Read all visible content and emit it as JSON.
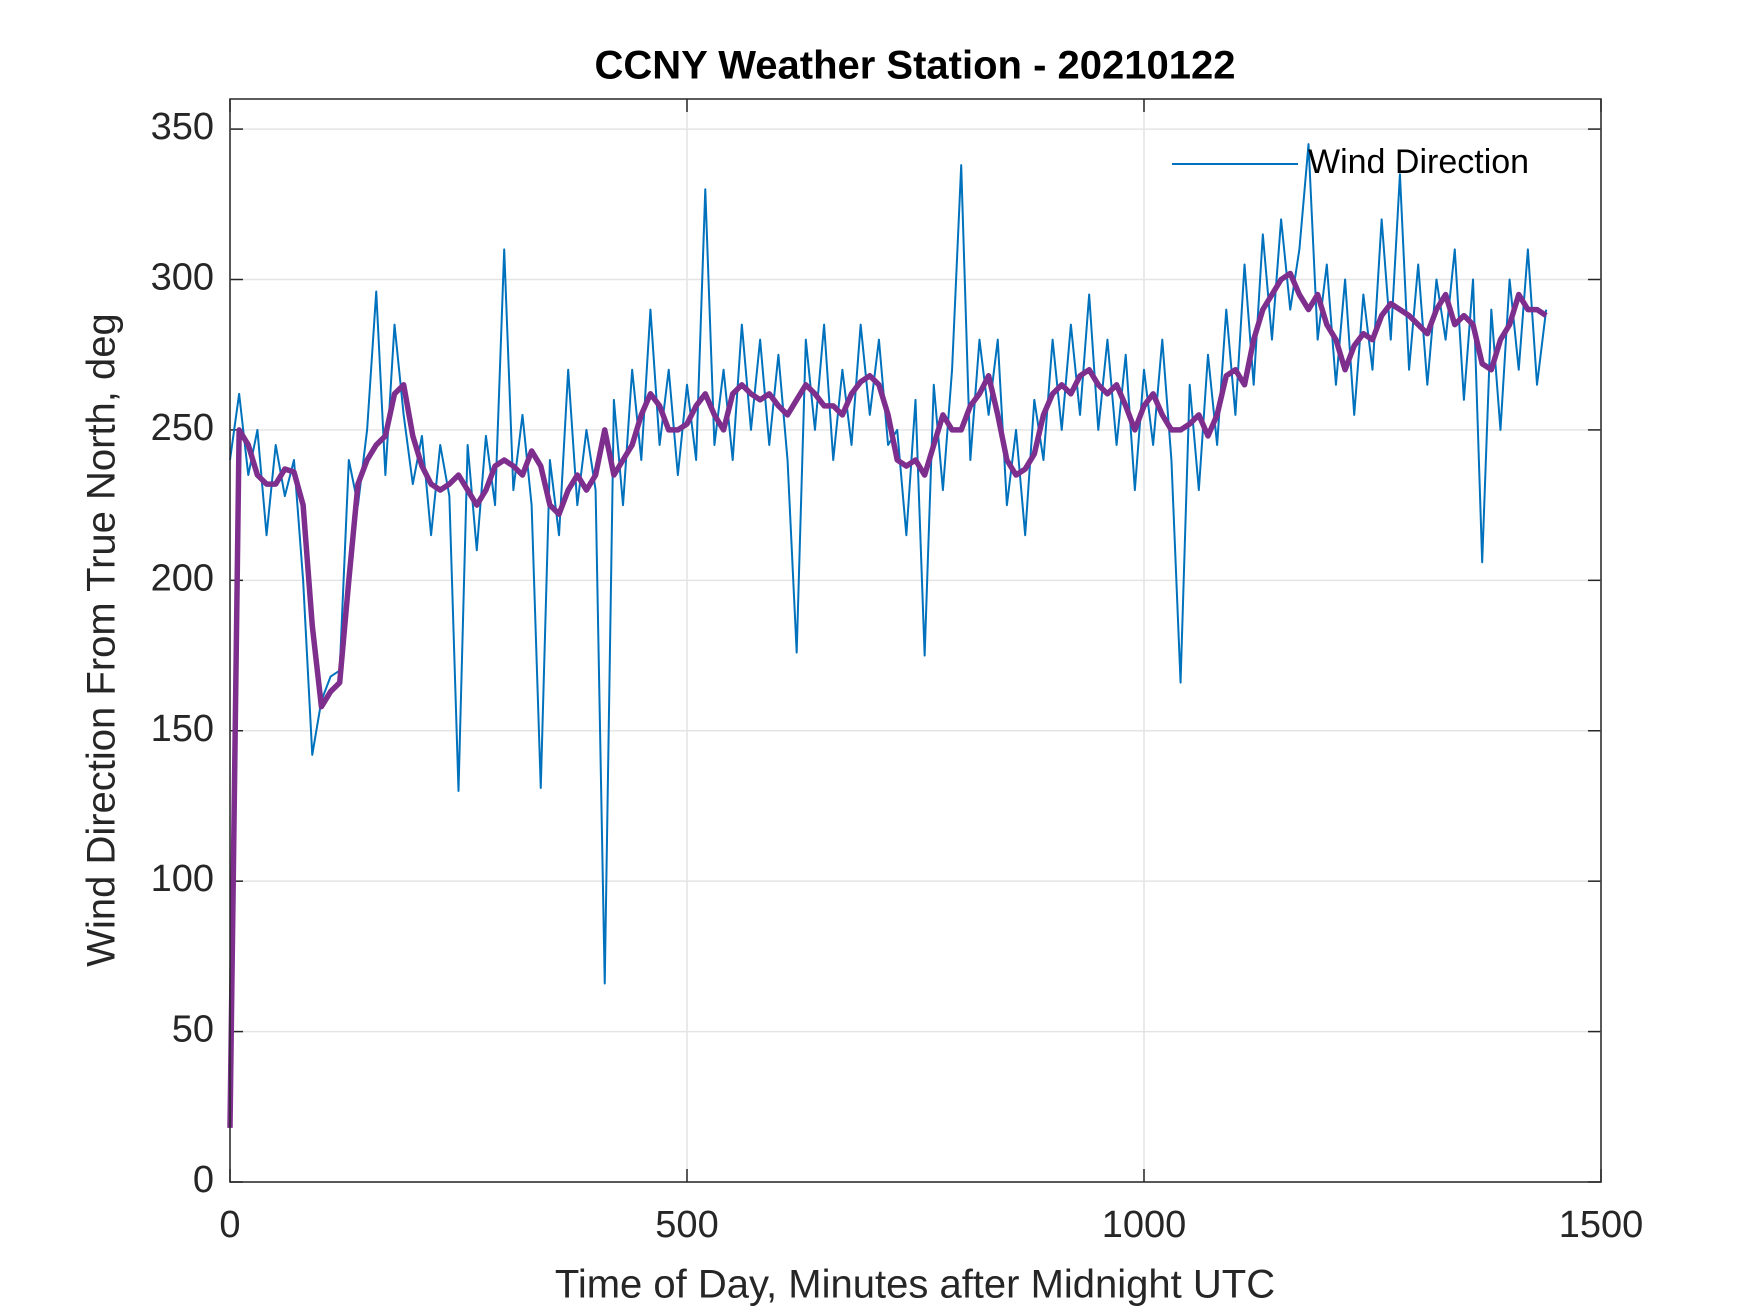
{
  "chart_data": {
    "type": "line",
    "title": "CCNY Weather Station - 20210122",
    "xlabel": "Time of Day, Minutes after Midnight UTC",
    "ylabel": "Wind Direction From True North, deg",
    "x": [
      0,
      10,
      20,
      30,
      40,
      50,
      60,
      70,
      80,
      90,
      100,
      110,
      120,
      130,
      140,
      150,
      160,
      170,
      180,
      190,
      200,
      210,
      220,
      230,
      240,
      250,
      260,
      270,
      280,
      290,
      300,
      310,
      320,
      330,
      340,
      350,
      360,
      370,
      380,
      390,
      400,
      410,
      420,
      430,
      440,
      450,
      460,
      470,
      480,
      490,
      500,
      510,
      520,
      530,
      540,
      550,
      560,
      570,
      580,
      590,
      600,
      610,
      620,
      630,
      640,
      650,
      660,
      670,
      680,
      690,
      700,
      710,
      720,
      730,
      740,
      750,
      760,
      770,
      780,
      790,
      800,
      810,
      820,
      830,
      840,
      850,
      860,
      870,
      880,
      890,
      900,
      910,
      920,
      930,
      940,
      950,
      960,
      970,
      980,
      990,
      1000,
      1010,
      1020,
      1030,
      1040,
      1050,
      1060,
      1070,
      1080,
      1090,
      1100,
      1110,
      1120,
      1130,
      1140,
      1150,
      1160,
      1170,
      1180,
      1190,
      1200,
      1210,
      1220,
      1230,
      1240,
      1250,
      1260,
      1270,
      1280,
      1290,
      1300,
      1310,
      1320,
      1330,
      1340,
      1350,
      1360,
      1370,
      1380,
      1390,
      1400,
      1410,
      1420,
      1430,
      1440
    ],
    "series": [
      {
        "name": "Wind Direction",
        "color": "#0072BD",
        "values": [
          240,
          262,
          235,
          250,
          215,
          245,
          228,
          240,
          200,
          142,
          160,
          168,
          170,
          240,
          225,
          250,
          296,
          235,
          285,
          255,
          232,
          248,
          215,
          245,
          228,
          130,
          245,
          210,
          248,
          225,
          310,
          230,
          255,
          225,
          131,
          240,
          215,
          270,
          225,
          250,
          230,
          66,
          260,
          225,
          270,
          240,
          290,
          245,
          270,
          235,
          265,
          240,
          330,
          245,
          270,
          240,
          285,
          250,
          280,
          245,
          275,
          240,
          176,
          280,
          250,
          285,
          240,
          270,
          245,
          285,
          255,
          280,
          245,
          250,
          215,
          260,
          175,
          265,
          230,
          270,
          338,
          240,
          280,
          255,
          280,
          225,
          250,
          215,
          260,
          240,
          280,
          250,
          285,
          255,
          295,
          250,
          280,
          245,
          275,
          230,
          270,
          245,
          280,
          240,
          166,
          265,
          230,
          275,
          245,
          290,
          255,
          305,
          265,
          315,
          280,
          320,
          290,
          310,
          345,
          280,
          305,
          265,
          300,
          255,
          295,
          270,
          320,
          280,
          335,
          270,
          305,
          265,
          300,
          280,
          310,
          260,
          300,
          206,
          290,
          250,
          300,
          270,
          310,
          265,
          290
        ]
      },
      {
        "color": "#7E2F8E",
        "values": [
          18,
          250,
          245,
          235,
          232,
          232,
          237,
          236,
          225,
          185,
          158,
          163,
          166,
          200,
          232,
          240,
          245,
          248,
          262,
          265,
          248,
          238,
          232,
          230,
          232,
          235,
          230,
          225,
          230,
          238,
          240,
          238,
          235,
          243,
          238,
          225,
          222,
          230,
          235,
          230,
          235,
          250,
          235,
          240,
          245,
          255,
          262,
          258,
          250,
          250,
          252,
          258,
          262,
          255,
          250,
          262,
          265,
          262,
          260,
          262,
          258,
          255,
          260,
          265,
          262,
          258,
          258,
          255,
          262,
          266,
          268,
          265,
          255,
          240,
          238,
          240,
          235,
          245,
          255,
          250,
          250,
          258,
          262,
          268,
          255,
          240,
          235,
          237,
          242,
          255,
          262,
          265,
          262,
          268,
          270,
          265,
          262,
          265,
          258,
          250,
          258,
          262,
          255,
          250,
          250,
          252,
          255,
          248,
          255,
          268,
          270,
          265,
          280,
          290,
          295,
          300,
          302,
          295,
          290,
          295,
          285,
          280,
          270,
          278,
          282,
          280,
          288,
          292,
          290,
          288,
          285,
          282,
          290,
          295,
          285,
          288,
          285,
          272,
          270,
          280,
          285,
          295,
          290,
          290,
          288
        ]
      }
    ],
    "xlim": [
      0,
      1500
    ],
    "xticks": [
      0,
      500,
      1000,
      1500
    ],
    "ylim": [
      0,
      360
    ],
    "yticks": [
      0,
      50,
      100,
      150,
      200,
      250,
      300,
      350
    ],
    "grid": true,
    "legend": "northeast"
  }
}
